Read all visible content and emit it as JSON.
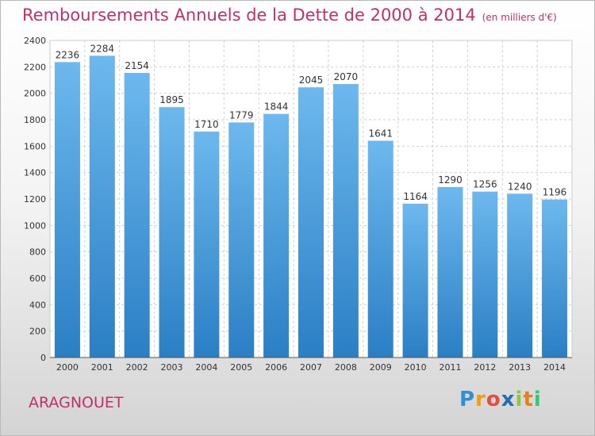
{
  "title": "Remboursements Annuels de la Dette de 2000 à 2014",
  "subtitle": "(en milliers d'€)",
  "commune": "ARAGNOUET",
  "logo": {
    "letters": [
      "P",
      "r",
      "o",
      "x",
      "i",
      "t",
      "i"
    ],
    "colors": [
      "#2f8fd6",
      "#f39c12",
      "#e74c3c",
      "#1f6fb2",
      "#8cc63f",
      "#e67e22",
      "#2ecc71"
    ]
  },
  "chart_data": {
    "type": "bar",
    "categories": [
      "2000",
      "2001",
      "2002",
      "2003",
      "2004",
      "2005",
      "2006",
      "2007",
      "2008",
      "2009",
      "2010",
      "2011",
      "2012",
      "2013",
      "2014"
    ],
    "values": [
      2236,
      2284,
      2154,
      1895,
      1710,
      1779,
      1844,
      2045,
      2070,
      1641,
      1164,
      1290,
      1256,
      1240,
      1196
    ],
    "title": "Remboursements Annuels de la Dette de 2000 à 2014",
    "xlabel": "",
    "ylabel": "",
    "ylim": [
      0,
      2400
    ],
    "yticks": [
      0,
      200,
      400,
      600,
      800,
      1000,
      1200,
      1400,
      1600,
      1800,
      2000,
      2200,
      2400
    ],
    "grid": true,
    "bar_color_top": "#6db8ee",
    "bar_color_bottom": "#2a7fc4"
  }
}
